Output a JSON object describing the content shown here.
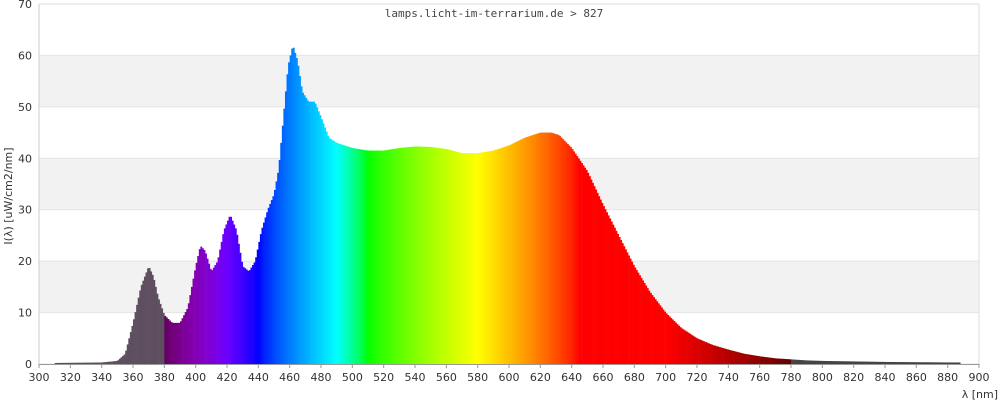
{
  "chart_data": {
    "type": "area",
    "title": "lamps.licht-im-terrarium.de > 827",
    "xlabel": "λ [nm]",
    "ylabel": "I(λ)  [uW/cm2/nm]",
    "xlim": [
      300,
      900
    ],
    "ylim": [
      0,
      70
    ],
    "xticks": [
      300,
      320,
      340,
      360,
      380,
      400,
      420,
      440,
      460,
      480,
      500,
      520,
      540,
      560,
      580,
      600,
      620,
      640,
      660,
      680,
      700,
      720,
      740,
      760,
      780,
      800,
      820,
      840,
      860,
      880,
      900
    ],
    "yticks": [
      0,
      10,
      20,
      30,
      40,
      50,
      60,
      70
    ],
    "grid": "horizontal bands",
    "coloring": "wavelength spectrum (UV <380 nm and IR >780 nm in gray)",
    "series": [
      {
        "x": [
          310,
          340,
          350,
          355,
          360,
          365,
          370,
          373,
          376,
          380,
          385,
          390,
          395,
          400,
          403,
          406,
          410,
          414,
          418,
          422,
          426,
          430,
          434,
          438,
          442,
          446,
          450,
          453,
          456,
          459,
          462,
          465,
          468,
          472,
          476,
          480,
          485,
          490,
          495,
          500,
          510,
          520,
          530,
          540,
          550,
          560,
          570,
          580,
          590,
          600,
          610,
          620,
          627,
          632,
          640,
          650,
          660,
          670,
          680,
          690,
          700,
          710,
          720,
          730,
          740,
          750,
          760,
          770,
          780,
          790,
          800,
          820,
          840,
          860,
          880,
          888
        ],
        "y": [
          0.2,
          0.3,
          0.6,
          2,
          8,
          15,
          19,
          17,
          13,
          9.5,
          8,
          8,
          11,
          19,
          23,
          22,
          18,
          20,
          26,
          29,
          26,
          19,
          18,
          20,
          26,
          30,
          33,
          38,
          48,
          58,
          62,
          59,
          53,
          51,
          51,
          48,
          44,
          43,
          42.5,
          42,
          41.5,
          41.5,
          42,
          42.3,
          42.2,
          41.8,
          41,
          41,
          41.5,
          42.5,
          44,
          45,
          45,
          44.5,
          42,
          37.5,
          31,
          25,
          19,
          14,
          10,
          7,
          5,
          3.7,
          2.8,
          2,
          1.5,
          1.1,
          0.9,
          0.7,
          0.6,
          0.5,
          0.4,
          0.35,
          0.3,
          0.3
        ]
      }
    ]
  }
}
